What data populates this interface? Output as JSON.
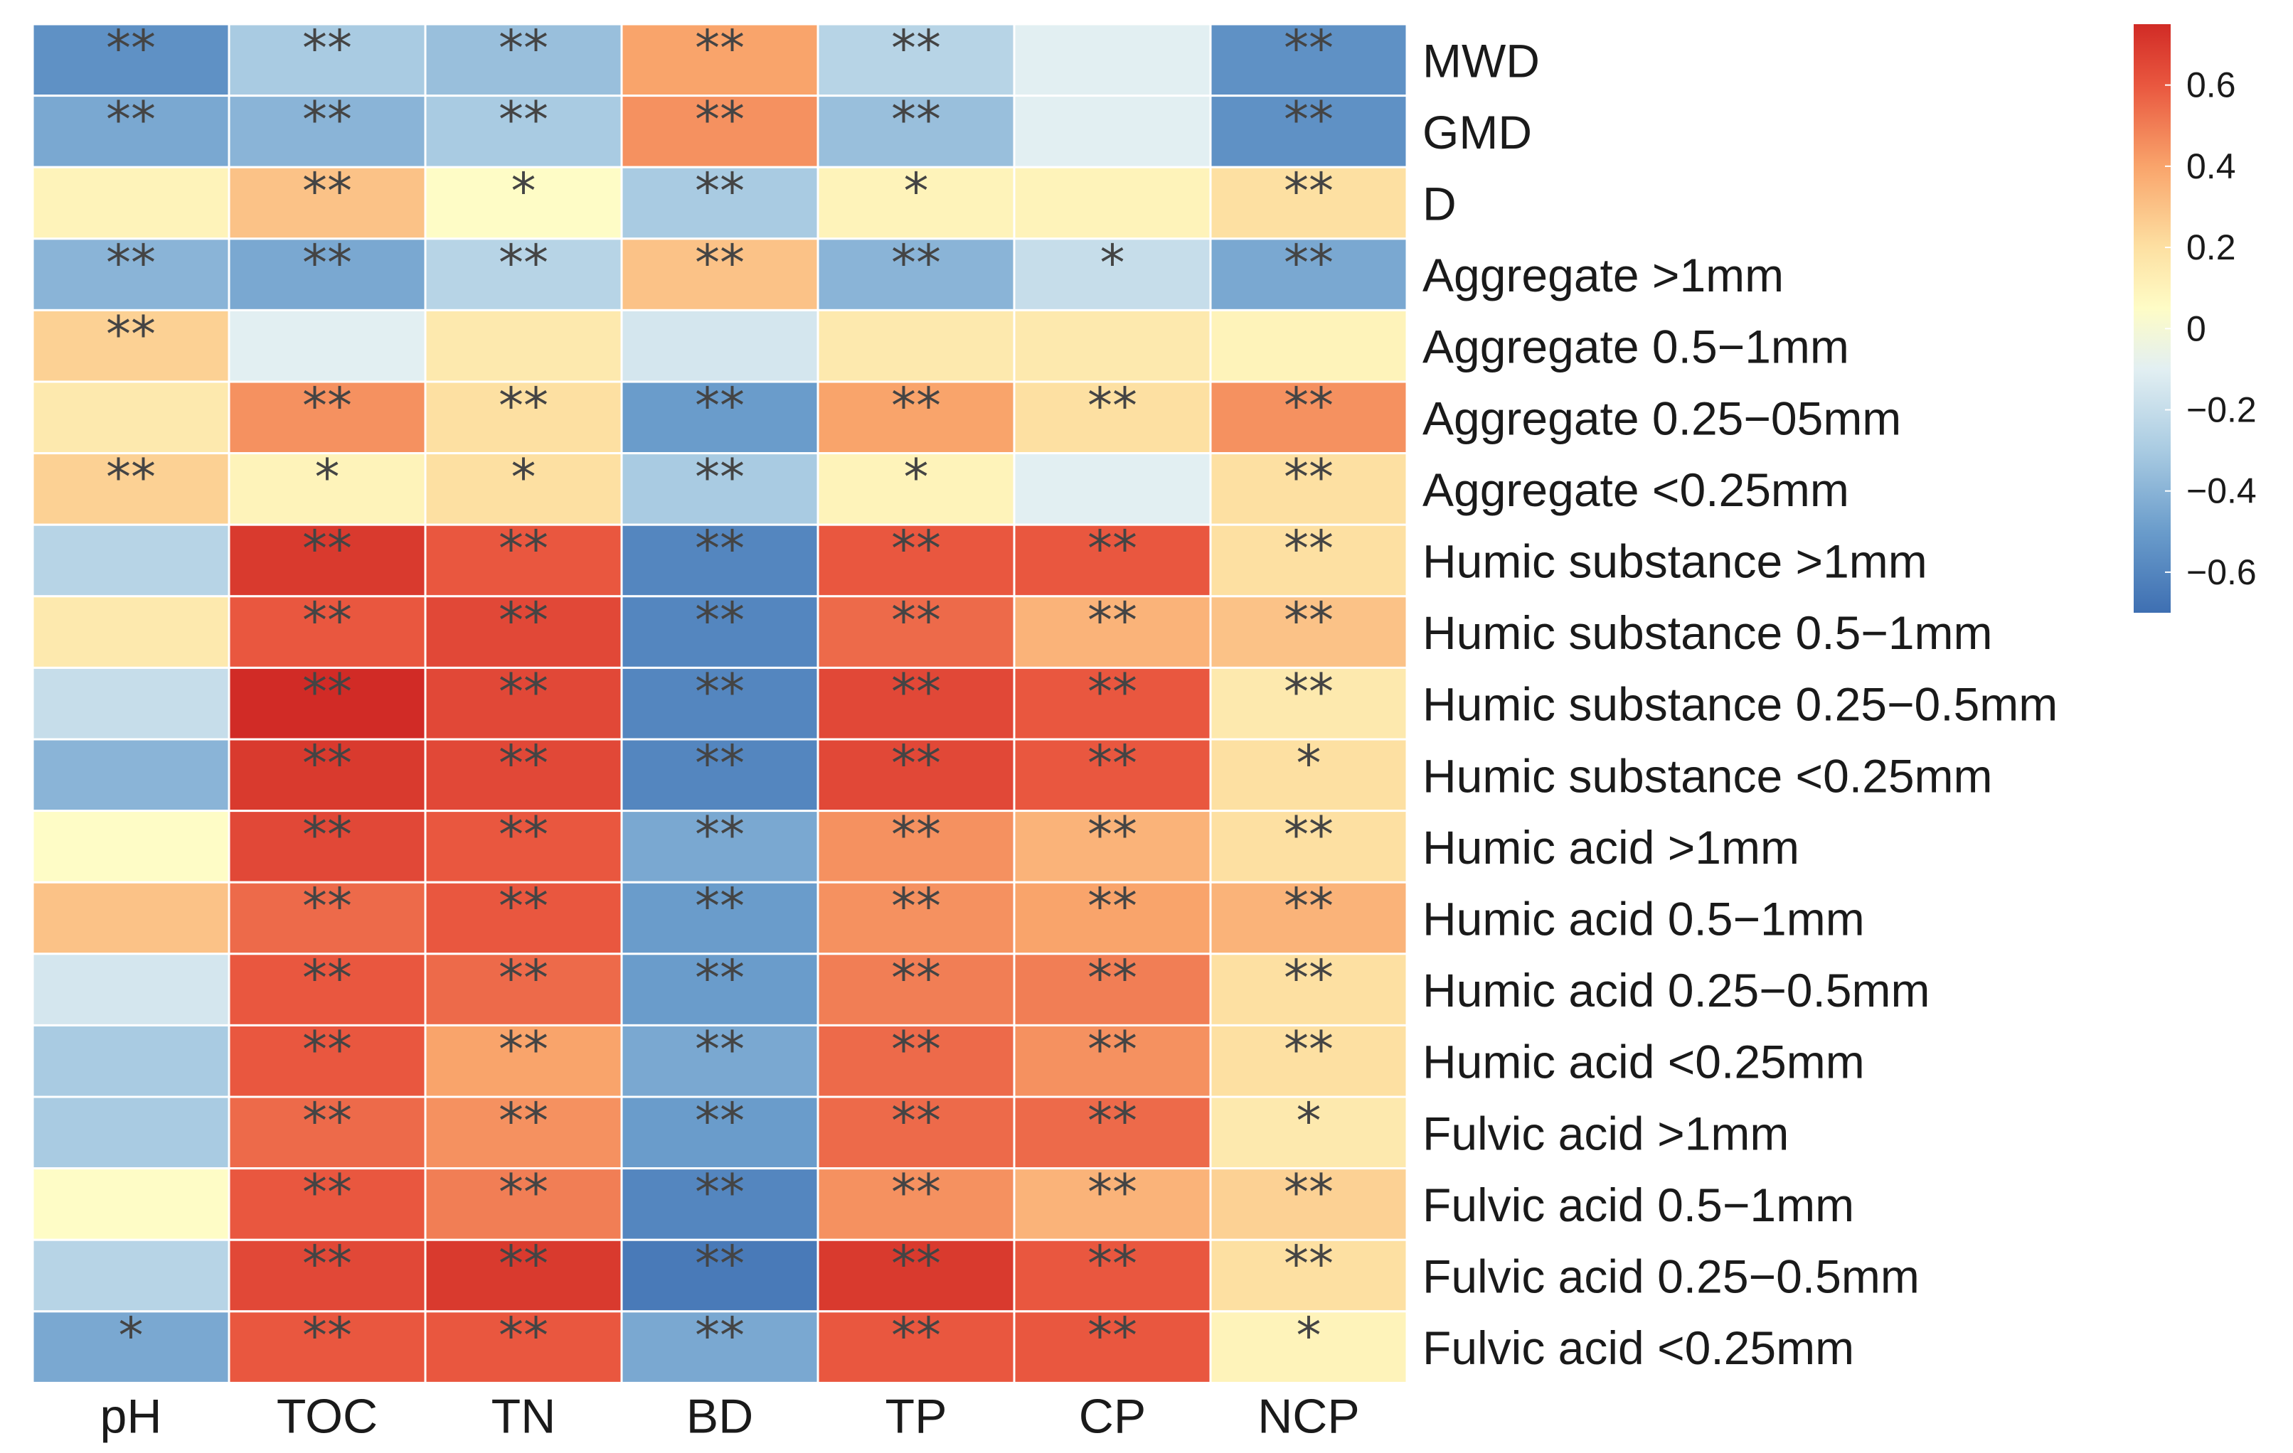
{
  "chart_data": {
    "type": "heatmap",
    "title": "",
    "columns": [
      "pH",
      "TOC",
      "TN",
      "BD",
      "TP",
      "CP",
      "NCP"
    ],
    "rows": [
      "MWD",
      "GMD",
      "D",
      "Aggregate >1mm",
      "Aggregate 0.5−1mm",
      "Aggregate 0.25−05mm",
      "Aggregate <0.25mm",
      "Humic substance >1mm",
      "Humic substance 0.5−1mm",
      "Humic substance 0.25−0.5mm",
      "Humic substance <0.25mm",
      "Humic acid >1mm",
      "Humic acid 0.5−1mm",
      "Humic acid 0.25−0.5mm",
      "Humic acid <0.25mm",
      "Fulvic acid >1mm",
      "Fulvic acid 0.5−1mm",
      "Fulvic acid 0.25−0.5mm",
      "Fulvic acid <0.25mm"
    ],
    "values": [
      [
        -0.55,
        -0.3,
        -0.35,
        0.4,
        -0.25,
        -0.1,
        -0.55
      ],
      [
        -0.45,
        -0.4,
        -0.3,
        0.45,
        -0.35,
        -0.1,
        -0.55
      ],
      [
        0.1,
        0.3,
        0.05,
        -0.3,
        0.1,
        0.1,
        0.2
      ],
      [
        -0.4,
        -0.45,
        -0.25,
        0.3,
        -0.4,
        -0.2,
        -0.45
      ],
      [
        0.25,
        -0.1,
        0.15,
        -0.15,
        0.15,
        0.15,
        0.1
      ],
      [
        0.15,
        0.45,
        0.2,
        -0.5,
        0.4,
        0.2,
        0.45
      ],
      [
        0.25,
        0.1,
        0.2,
        -0.3,
        0.1,
        -0.1,
        0.2
      ],
      [
        -0.25,
        0.7,
        0.6,
        -0.6,
        0.6,
        0.6,
        0.2
      ],
      [
        0.15,
        0.6,
        0.65,
        -0.6,
        0.55,
        0.35,
        0.3
      ],
      [
        -0.2,
        0.75,
        0.65,
        -0.6,
        0.65,
        0.6,
        0.15
      ],
      [
        -0.4,
        0.7,
        0.65,
        -0.6,
        0.65,
        0.6,
        0.2
      ],
      [
        0.05,
        0.65,
        0.6,
        -0.45,
        0.45,
        0.35,
        0.2
      ],
      [
        0.3,
        0.55,
        0.6,
        -0.5,
        0.45,
        0.4,
        0.35
      ],
      [
        -0.15,
        0.6,
        0.55,
        -0.5,
        0.5,
        0.5,
        0.2
      ],
      [
        -0.3,
        0.6,
        0.4,
        -0.45,
        0.55,
        0.45,
        0.2
      ],
      [
        -0.3,
        0.55,
        0.45,
        -0.5,
        0.55,
        0.55,
        0.15
      ],
      [
        0.05,
        0.6,
        0.5,
        -0.6,
        0.45,
        0.35,
        0.25
      ],
      [
        -0.25,
        0.65,
        0.7,
        -0.65,
        0.7,
        0.6,
        0.2
      ],
      [
        -0.45,
        0.6,
        0.6,
        -0.45,
        0.6,
        0.6,
        0.1
      ]
    ],
    "significance": [
      [
        "**",
        "**",
        "**",
        "**",
        "**",
        "",
        "**"
      ],
      [
        "**",
        "**",
        "**",
        "**",
        "**",
        "",
        "**"
      ],
      [
        "",
        "**",
        "*",
        "**",
        "*",
        "",
        "**"
      ],
      [
        "**",
        "**",
        "**",
        "**",
        "**",
        "*",
        "**"
      ],
      [
        "**",
        "",
        "",
        "",
        "",
        "",
        ""
      ],
      [
        "",
        "**",
        "**",
        "**",
        "**",
        "**",
        "**"
      ],
      [
        "**",
        "*",
        "*",
        "**",
        "*",
        "",
        "**"
      ],
      [
        "",
        "**",
        "**",
        "**",
        "**",
        "**",
        "**"
      ],
      [
        "",
        "**",
        "**",
        "**",
        "**",
        "**",
        "**"
      ],
      [
        "",
        "**",
        "**",
        "**",
        "**",
        "**",
        "**"
      ],
      [
        "",
        "**",
        "**",
        "**",
        "**",
        "**",
        "*"
      ],
      [
        "",
        "**",
        "**",
        "**",
        "**",
        "**",
        "**"
      ],
      [
        "",
        "**",
        "**",
        "**",
        "**",
        "**",
        "**"
      ],
      [
        "",
        "**",
        "**",
        "**",
        "**",
        "**",
        "**"
      ],
      [
        "",
        "**",
        "**",
        "**",
        "**",
        "**",
        "**"
      ],
      [
        "",
        "**",
        "**",
        "**",
        "**",
        "**",
        "*"
      ],
      [
        "",
        "**",
        "**",
        "**",
        "**",
        "**",
        "**"
      ],
      [
        "",
        "**",
        "**",
        "**",
        "**",
        "**",
        "**"
      ],
      [
        "*",
        "**",
        "**",
        "**",
        "**",
        "**",
        "*"
      ]
    ],
    "color_scale": {
      "range": [
        -0.7,
        0.75
      ],
      "stops": [
        {
          "value": -0.7,
          "color": "#3e6fb2"
        },
        {
          "value": -0.5,
          "color": "#6a9ccb"
        },
        {
          "value": -0.3,
          "color": "#a9cbe2"
        },
        {
          "value": -0.1,
          "color": "#e2eff2"
        },
        {
          "value": 0.05,
          "color": "#fefcc6"
        },
        {
          "value": 0.2,
          "color": "#fde0a2"
        },
        {
          "value": 0.4,
          "color": "#f9a46b"
        },
        {
          "value": 0.6,
          "color": "#e9573f"
        },
        {
          "value": 0.75,
          "color": "#d12b26"
        }
      ]
    },
    "legend": {
      "position": "top-right",
      "ticks": [
        0.6,
        0.4,
        0.2,
        0,
        -0.2,
        -0.4,
        -0.6
      ],
      "tick_labels": [
        "0.6",
        "0.4",
        "0.2",
        "0",
        "−0.2",
        "−0.4",
        "−0.6"
      ]
    }
  }
}
